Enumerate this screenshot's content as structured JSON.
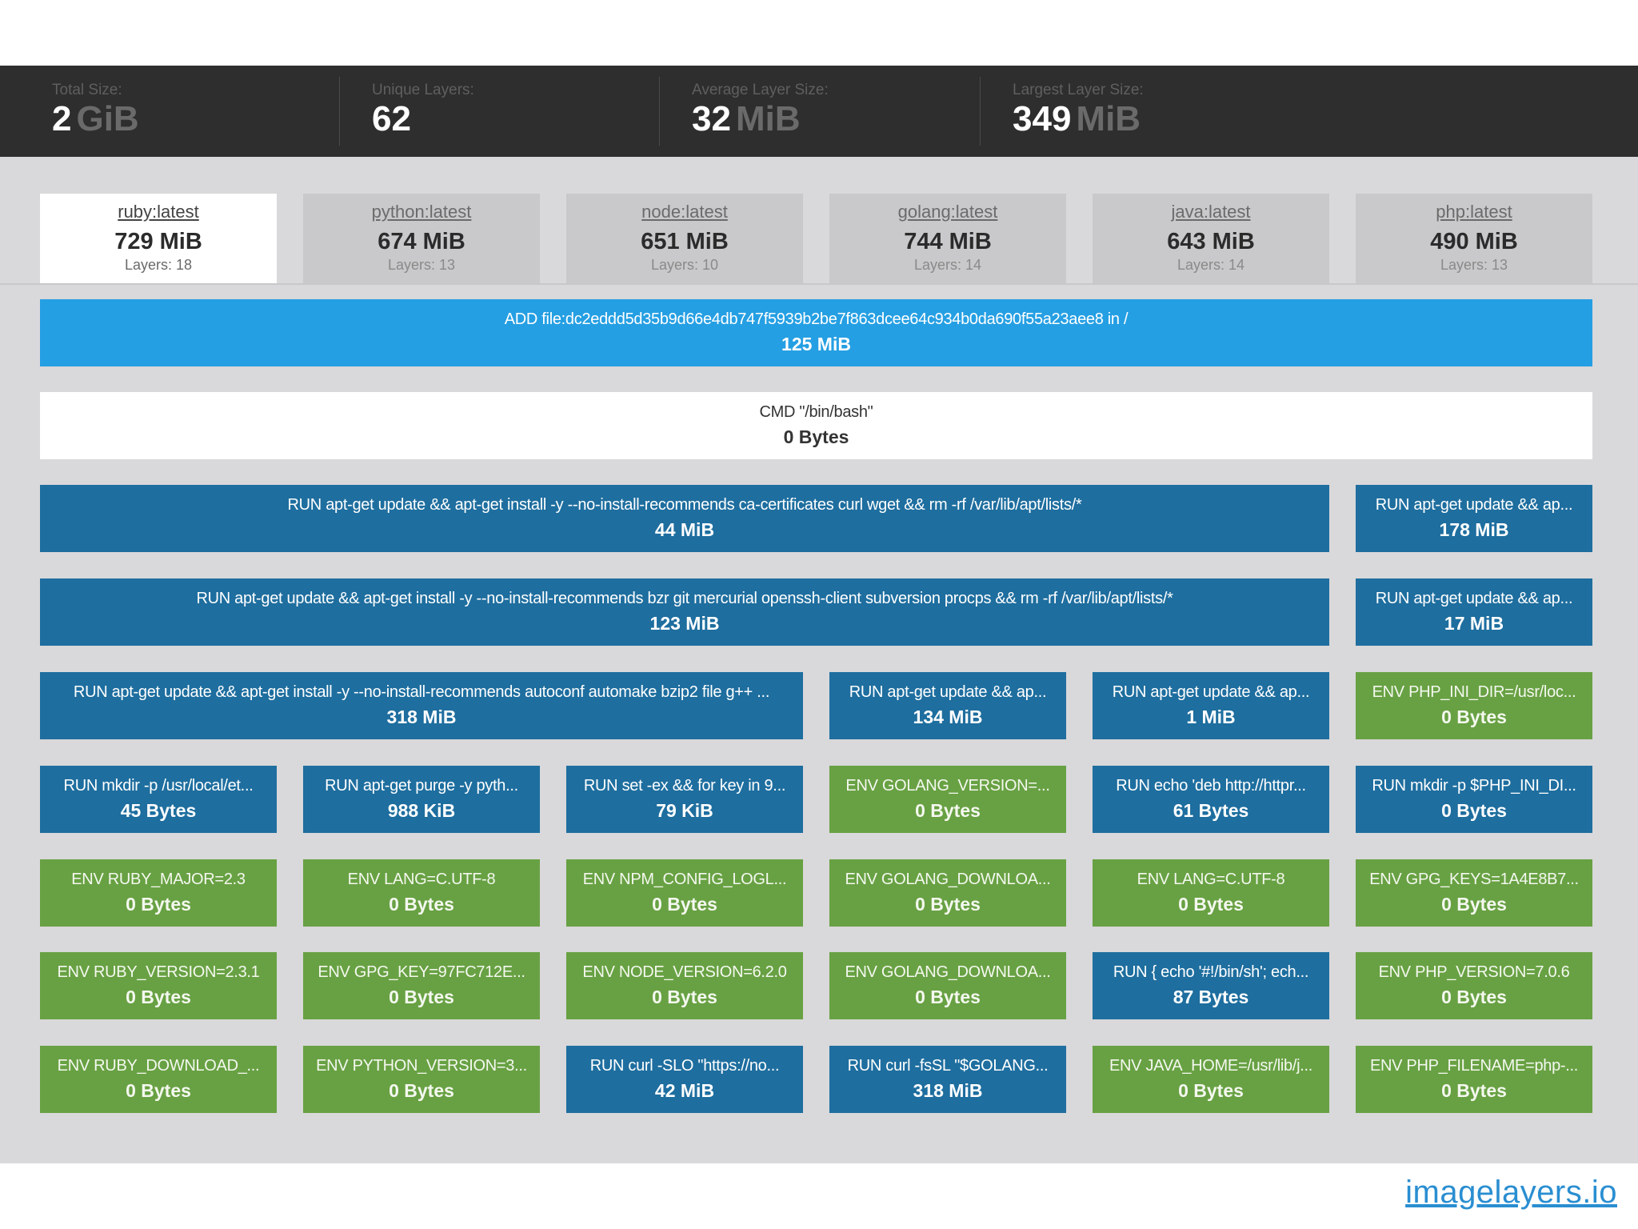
{
  "stats": [
    {
      "label": "Total Size:",
      "value": "2",
      "unit": "GiB"
    },
    {
      "label": "Unique Layers:",
      "value": "62",
      "unit": ""
    },
    {
      "label": "Average Layer Size:",
      "value": "32",
      "unit": "MiB"
    },
    {
      "label": "Largest Layer Size:",
      "value": "349",
      "unit": "MiB"
    }
  ],
  "tabs": [
    {
      "name": "ruby:latest",
      "size": "729 MiB",
      "layers": "Layers: 18",
      "active": true
    },
    {
      "name": "python:latest",
      "size": "674 MiB",
      "layers": "Layers: 13",
      "active": false
    },
    {
      "name": "node:latest",
      "size": "651 MiB",
      "layers": "Layers: 10",
      "active": false
    },
    {
      "name": "golang:latest",
      "size": "744 MiB",
      "layers": "Layers: 14",
      "active": false
    },
    {
      "name": "java:latest",
      "size": "643 MiB",
      "layers": "Layers: 14",
      "active": false
    },
    {
      "name": "php:latest",
      "size": "490 MiB",
      "layers": "Layers: 13",
      "active": false
    }
  ],
  "layers": [
    {
      "cmd": "ADD file:dc2eddd5d35b9d66e4db747f5939b2be7f863dcee64c934b0da690f55a23aee8 in /",
      "size": "125 MiB",
      "color": "light"
    },
    {
      "cmd": "CMD \"/bin/bash\"",
      "size": "0 Bytes",
      "color": "white"
    },
    {
      "cmd": "RUN apt-get update && apt-get install -y --no-install-recommends ca-certificates curl wget && rm -rf /var/lib/apt/lists/*",
      "size": "44 MiB",
      "color": "blue"
    },
    {
      "cmd": "RUN apt-get update && ap...",
      "size": "178 MiB",
      "color": "blue"
    },
    {
      "cmd": "RUN apt-get update && apt-get install -y --no-install-recommends bzr git mercurial openssh-client subversion procps && rm -rf /var/lib/apt/lists/*",
      "size": "123 MiB",
      "color": "blue"
    },
    {
      "cmd": "RUN apt-get update && ap...",
      "size": "17 MiB",
      "color": "blue"
    },
    {
      "cmd": "RUN apt-get update && apt-get install -y --no-install-recommends autoconf automake bzip2 file g++ ...",
      "size": "318 MiB",
      "color": "blue"
    },
    {
      "cmd": "RUN apt-get update && ap...",
      "size": "134 MiB",
      "color": "blue"
    },
    {
      "cmd": "RUN apt-get update && ap...",
      "size": "1 MiB",
      "color": "blue"
    },
    {
      "cmd": "ENV PHP_INI_DIR=/usr/loc...",
      "size": "0 Bytes",
      "color": "green"
    },
    {
      "cmd": "RUN mkdir -p /usr/local/et...",
      "size": "45 Bytes",
      "color": "blue"
    },
    {
      "cmd": "RUN apt-get purge -y pyth...",
      "size": "988 KiB",
      "color": "blue"
    },
    {
      "cmd": "RUN set -ex && for key in 9...",
      "size": "79 KiB",
      "color": "blue"
    },
    {
      "cmd": "ENV GOLANG_VERSION=...",
      "size": "0 Bytes",
      "color": "green"
    },
    {
      "cmd": "RUN echo 'deb http://httpr...",
      "size": "61 Bytes",
      "color": "blue"
    },
    {
      "cmd": "RUN mkdir -p $PHP_INI_DI...",
      "size": "0 Bytes",
      "color": "blue"
    },
    {
      "cmd": "ENV RUBY_MAJOR=2.3",
      "size": "0 Bytes",
      "color": "green"
    },
    {
      "cmd": "ENV LANG=C.UTF-8",
      "size": "0 Bytes",
      "color": "green"
    },
    {
      "cmd": "ENV NPM_CONFIG_LOGL...",
      "size": "0 Bytes",
      "color": "green"
    },
    {
      "cmd": "ENV GOLANG_DOWNLOA...",
      "size": "0 Bytes",
      "color": "green"
    },
    {
      "cmd": "ENV LANG=C.UTF-8",
      "size": "0 Bytes",
      "color": "green"
    },
    {
      "cmd": "ENV GPG_KEYS=1A4E8B7...",
      "size": "0 Bytes",
      "color": "green"
    },
    {
      "cmd": "ENV RUBY_VERSION=2.3.1",
      "size": "0 Bytes",
      "color": "green"
    },
    {
      "cmd": "ENV GPG_KEY=97FC712E...",
      "size": "0 Bytes",
      "color": "green"
    },
    {
      "cmd": "ENV NODE_VERSION=6.2.0",
      "size": "0 Bytes",
      "color": "green"
    },
    {
      "cmd": "ENV GOLANG_DOWNLOA...",
      "size": "0 Bytes",
      "color": "green"
    },
    {
      "cmd": "RUN { echo '#!/bin/sh'; ech...",
      "size": "87 Bytes",
      "color": "blue"
    },
    {
      "cmd": "ENV PHP_VERSION=7.0.6",
      "size": "0 Bytes",
      "color": "green"
    },
    {
      "cmd": "ENV RUBY_DOWNLOAD_...",
      "size": "0 Bytes",
      "color": "green"
    },
    {
      "cmd": "ENV PYTHON_VERSION=3...",
      "size": "0 Bytes",
      "color": "green"
    },
    {
      "cmd": "RUN curl -SLO \"https://no...",
      "size": "42 MiB",
      "color": "blue"
    },
    {
      "cmd": "RUN curl -fsSL \"$GOLANG...",
      "size": "318 MiB",
      "color": "blue"
    },
    {
      "cmd": "ENV JAVA_HOME=/usr/lib/j...",
      "size": "0 Bytes",
      "color": "green"
    },
    {
      "cmd": "ENV PHP_FILENAME=php-...",
      "size": "0 Bytes",
      "color": "green"
    }
  ],
  "footer": {
    "site": "imagelayers.io"
  }
}
